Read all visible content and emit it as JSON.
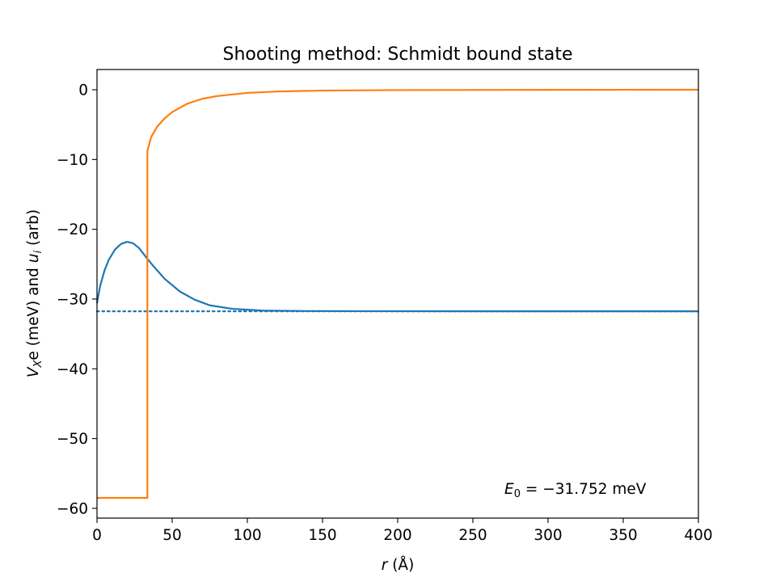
{
  "chart_data": {
    "type": "line",
    "title": "Shooting method: Schmidt bound state",
    "xlabel_main": "r",
    "xlabel_unit": " (Å)",
    "ylabel": {
      "v": "V",
      "v_sub": "X",
      "v_rest": "e (meV) and ",
      "u": "u",
      "u_sub": "i",
      "tail": " (arb)"
    },
    "xlim": [
      0,
      400
    ],
    "ylim": [
      -61.4,
      2.9
    ],
    "xticks": [
      0,
      50,
      100,
      150,
      200,
      250,
      300,
      350,
      400
    ],
    "xtick_labels": [
      "0",
      "50",
      "100",
      "150",
      "200",
      "250",
      "300",
      "350",
      "400"
    ],
    "yticks": [
      0,
      -10,
      -20,
      -30,
      -40,
      -50,
      -60
    ],
    "ytick_labels": [
      "0",
      "−10",
      "−20",
      "−30",
      "−40",
      "−50",
      "−60"
    ],
    "grid": false,
    "annotation": {
      "lhs": "E",
      "sub": "0",
      "rhs": " = −31.752 meV"
    },
    "series": [
      {
        "color": "#1f77b4",
        "style": "solid",
        "points": [
          [
            0,
            -30.6
          ],
          [
            2,
            -28.2
          ],
          [
            5,
            -25.9
          ],
          [
            8,
            -24.3
          ],
          [
            12,
            -22.9
          ],
          [
            16,
            -22.1
          ],
          [
            20,
            -21.8
          ],
          [
            24,
            -22.0
          ],
          [
            28,
            -22.7
          ],
          [
            33,
            -24.1
          ],
          [
            38,
            -25.4
          ],
          [
            45,
            -27.1
          ],
          [
            55,
            -28.9
          ],
          [
            65,
            -30.1
          ],
          [
            75,
            -30.9
          ],
          [
            90,
            -31.4
          ],
          [
            110,
            -31.65
          ],
          [
            140,
            -31.72
          ],
          [
            200,
            -31.75
          ],
          [
            400,
            -31.752
          ]
        ]
      },
      {
        "color": "#1f77b4",
        "style": "dotted",
        "points": [
          [
            0,
            -31.752
          ],
          [
            400,
            -31.752
          ]
        ]
      },
      {
        "color": "#ff7f0e",
        "style": "solid",
        "points": [
          [
            0,
            -58.5
          ],
          [
            33.5,
            -58.5
          ],
          [
            33.5,
            -8.8
          ],
          [
            36,
            -6.8
          ],
          [
            40,
            -5.3
          ],
          [
            45,
            -4.1
          ],
          [
            50,
            -3.2
          ],
          [
            60,
            -2.0
          ],
          [
            70,
            -1.3
          ],
          [
            80,
            -0.9
          ],
          [
            100,
            -0.45
          ],
          [
            120,
            -0.25
          ],
          [
            150,
            -0.12
          ],
          [
            200,
            -0.05
          ],
          [
            300,
            -0.01
          ],
          [
            400,
            0
          ]
        ]
      }
    ]
  }
}
